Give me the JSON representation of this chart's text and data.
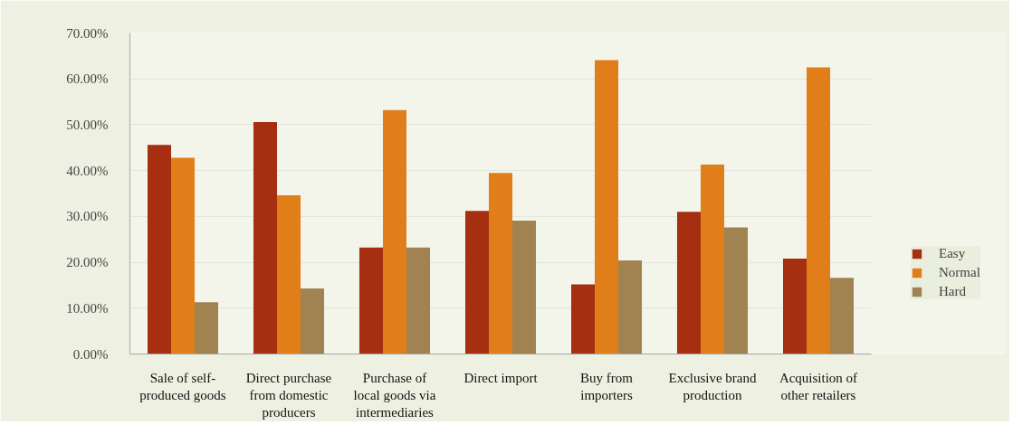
{
  "chart_data": {
    "type": "bar",
    "categories": [
      "Sale of self-produced goods",
      "Direct purchase from domestic producers",
      "Purchase of local goods via intermediaries",
      "Direct import",
      "Buy from importers",
      "Exclusive brand production",
      "Acquisition of other retailers"
    ],
    "series": [
      {
        "name": "Easy",
        "color": "#a52f10",
        "values": [
          45.6,
          50.6,
          23.2,
          31.2,
          15.2,
          31.0,
          20.8
        ]
      },
      {
        "name": "Normal",
        "color": "#e07f1a",
        "values": [
          42.8,
          34.6,
          53.2,
          39.5,
          64.1,
          41.3,
          62.5
        ]
      },
      {
        "name": "Hard",
        "color": "#a08350",
        "values": [
          11.3,
          14.3,
          23.2,
          29.1,
          20.4,
          27.6,
          16.6
        ]
      }
    ],
    "ylim": [
      0,
      70
    ],
    "yticks": [
      {
        "value": 0,
        "label": "0.00%"
      },
      {
        "value": 10,
        "label": "10.00%"
      },
      {
        "value": 20,
        "label": "20.00%"
      },
      {
        "value": 30,
        "label": "30.00%"
      },
      {
        "value": 40,
        "label": "40.00%"
      },
      {
        "value": 50,
        "label": "50.00%"
      },
      {
        "value": 60,
        "label": "60.00%"
      },
      {
        "value": 70,
        "label": "70.00%"
      }
    ],
    "grid": "y",
    "legend": "right"
  }
}
